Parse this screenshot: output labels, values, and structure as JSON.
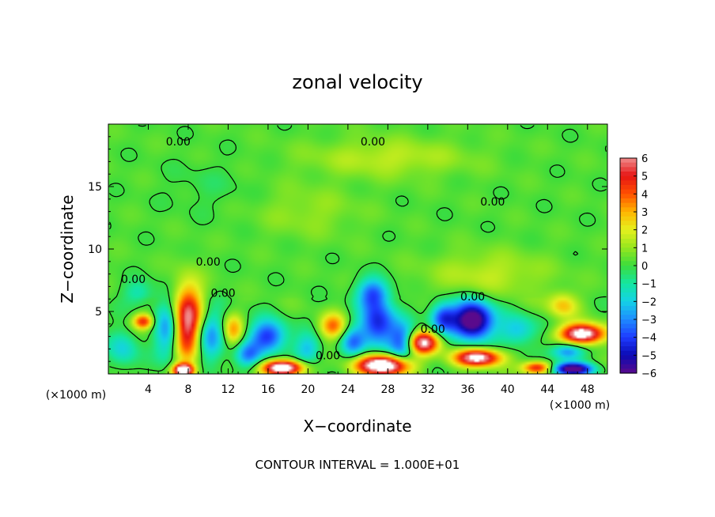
{
  "chart_data": {
    "type": "heatmap",
    "title": "zonal velocity",
    "xlabel": "X−coordinate",
    "ylabel": "Z−coordinate",
    "x_unit_left": "(×1000 m)",
    "x_unit_right": "(×1000 m)",
    "note": "CONTOUR INTERVAL = 1.000E+01",
    "xlim": [
      0,
      50
    ],
    "ylim": [
      0,
      20
    ],
    "x_ticks": [
      4,
      8,
      12,
      16,
      20,
      24,
      28,
      32,
      36,
      40,
      44,
      48
    ],
    "x_tick_labels": [
      "4",
      "8",
      "12",
      "16",
      "20",
      "24",
      "28",
      "32",
      "36",
      "40",
      "44",
      "48"
    ],
    "y_ticks": [
      5,
      10,
      15
    ],
    "y_tick_labels": [
      "5",
      "10",
      "15"
    ],
    "colorbar": {
      "min": -6,
      "max": 6,
      "ticks": [
        6,
        5,
        4,
        3,
        2,
        1,
        0,
        -1,
        -2,
        -3,
        -4,
        -5,
        -6
      ],
      "tick_labels": [
        "6",
        "5",
        "4",
        "3",
        "2",
        "1",
        "0",
        "−1",
        "−2",
        "−3",
        "−4",
        "−5",
        "−6"
      ],
      "stops": [
        {
          "v": -6,
          "c": "#5a0a8c"
        },
        {
          "v": -5,
          "c": "#0a0ab4"
        },
        {
          "v": -4,
          "c": "#1e3cff"
        },
        {
          "v": -3,
          "c": "#1e8cff"
        },
        {
          "v": -2,
          "c": "#14d2e6"
        },
        {
          "v": -1,
          "c": "#14e6a0"
        },
        {
          "v": 0,
          "c": "#3cdc3c"
        },
        {
          "v": 1,
          "c": "#96e61e"
        },
        {
          "v": 2,
          "c": "#e6f01e"
        },
        {
          "v": 3,
          "c": "#ffb400"
        },
        {
          "v": 4,
          "c": "#ff5000"
        },
        {
          "v": 5,
          "c": "#e61414"
        },
        {
          "v": 6,
          "c": "#f08c8c"
        }
      ],
      "saturated_color": "#ffffff"
    },
    "background_level": 0.2,
    "features": [
      {
        "x": 8.0,
        "z": 4.0,
        "v": 6.5,
        "rx": 1.6,
        "rz": 3.0
      },
      {
        "x": 6.0,
        "z": 3.5,
        "v": -3.5,
        "rx": 1.3,
        "rz": 2.4
      },
      {
        "x": 10.0,
        "z": 3.0,
        "v": -3.5,
        "rx": 1.6,
        "rz": 2.2
      },
      {
        "x": 3.5,
        "z": 4.2,
        "v": 4.5,
        "rx": 1.0,
        "rz": 0.6
      },
      {
        "x": 1.5,
        "z": 2.0,
        "v": -2.0,
        "rx": 1.5,
        "rz": 1.5
      },
      {
        "x": 3.0,
        "z": 6.5,
        "v": -1.5,
        "rx": 1.5,
        "rz": 1.0
      },
      {
        "x": 7.5,
        "z": 0.3,
        "v": 8.0,
        "rx": 1.0,
        "rz": 0.5
      },
      {
        "x": 12.5,
        "z": 3.5,
        "v": 3.0,
        "rx": 1.0,
        "rz": 1.2
      },
      {
        "x": 14.0,
        "z": 1.5,
        "v": -3.0,
        "rx": 1.3,
        "rz": 1.0
      },
      {
        "x": 16.0,
        "z": 3.0,
        "v": -4.5,
        "rx": 1.8,
        "rz": 1.3
      },
      {
        "x": 17.5,
        "z": 0.5,
        "v": 8.0,
        "rx": 2.0,
        "rz": 0.6
      },
      {
        "x": 20.0,
        "z": 2.0,
        "v": -2.5,
        "rx": 1.3,
        "rz": 1.2
      },
      {
        "x": 22.5,
        "z": 3.8,
        "v": 3.5,
        "rx": 1.3,
        "rz": 1.0
      },
      {
        "x": 24.5,
        "z": 2.5,
        "v": -3.0,
        "rx": 1.2,
        "rz": 1.2
      },
      {
        "x": 27.0,
        "z": 4.0,
        "v": -4.8,
        "rx": 1.8,
        "rz": 1.8
      },
      {
        "x": 26.5,
        "z": 6.5,
        "v": -3.5,
        "rx": 1.6,
        "rz": 1.2
      },
      {
        "x": 27.5,
        "z": 0.7,
        "v": 8.5,
        "rx": 2.6,
        "rz": 0.8
      },
      {
        "x": 29.5,
        "z": 2.5,
        "v": -4.0,
        "rx": 1.3,
        "rz": 1.5
      },
      {
        "x": 31.5,
        "z": 2.5,
        "v": 6.5,
        "rx": 1.6,
        "rz": 0.9
      },
      {
        "x": 33.5,
        "z": 4.5,
        "v": -4.0,
        "rx": 1.3,
        "rz": 1.2
      },
      {
        "x": 36.5,
        "z": 4.3,
        "v": -7.5,
        "rx": 2.0,
        "rz": 1.5
      },
      {
        "x": 37.0,
        "z": 1.3,
        "v": 7.0,
        "rx": 2.3,
        "rz": 0.7
      },
      {
        "x": 41.0,
        "z": 3.5,
        "v": -2.5,
        "rx": 1.8,
        "rz": 1.2
      },
      {
        "x": 43.0,
        "z": 0.5,
        "v": 5.0,
        "rx": 1.5,
        "rz": 0.5
      },
      {
        "x": 45.5,
        "z": 5.5,
        "v": 2.5,
        "rx": 1.5,
        "rz": 1.0
      },
      {
        "x": 47.5,
        "z": 3.2,
        "v": 7.5,
        "rx": 2.2,
        "rz": 0.8
      },
      {
        "x": 46.5,
        "z": 0.4,
        "v": -7.0,
        "rx": 2.0,
        "rz": 0.5
      },
      {
        "x": 46.0,
        "z": 1.8,
        "v": -3.5,
        "rx": 1.6,
        "rz": 0.7
      },
      {
        "x": 38.0,
        "z": 8.0,
        "v": 1.3,
        "rx": 6.0,
        "rz": 1.8
      },
      {
        "x": 28.0,
        "z": 17.3,
        "v": 1.3,
        "rx": 8.0,
        "rz": 1.5
      },
      {
        "x": 10.0,
        "z": 15.0,
        "v": -0.4,
        "rx": 4.0,
        "rz": 2.0
      },
      {
        "x": 20.0,
        "z": 13.0,
        "v": 0.8,
        "rx": 5.0,
        "rz": 2.0
      }
    ],
    "contour_labels": [
      {
        "text": "0.00",
        "x": 7.0,
        "z": 18.6
      },
      {
        "text": "0.00",
        "x": 26.5,
        "z": 18.6
      },
      {
        "text": "0.00",
        "x": 38.5,
        "z": 13.8
      },
      {
        "text": "0.00",
        "x": 10.0,
        "z": 9.0
      },
      {
        "text": "0.00",
        "x": 2.5,
        "z": 7.6
      },
      {
        "text": "0.00",
        "x": 11.5,
        "z": 6.5
      },
      {
        "text": "0.00",
        "x": 36.5,
        "z": 6.2
      },
      {
        "text": "0.00",
        "x": 32.5,
        "z": 3.6
      },
      {
        "text": "0.00",
        "x": 22.0,
        "z": 1.5
      }
    ]
  }
}
